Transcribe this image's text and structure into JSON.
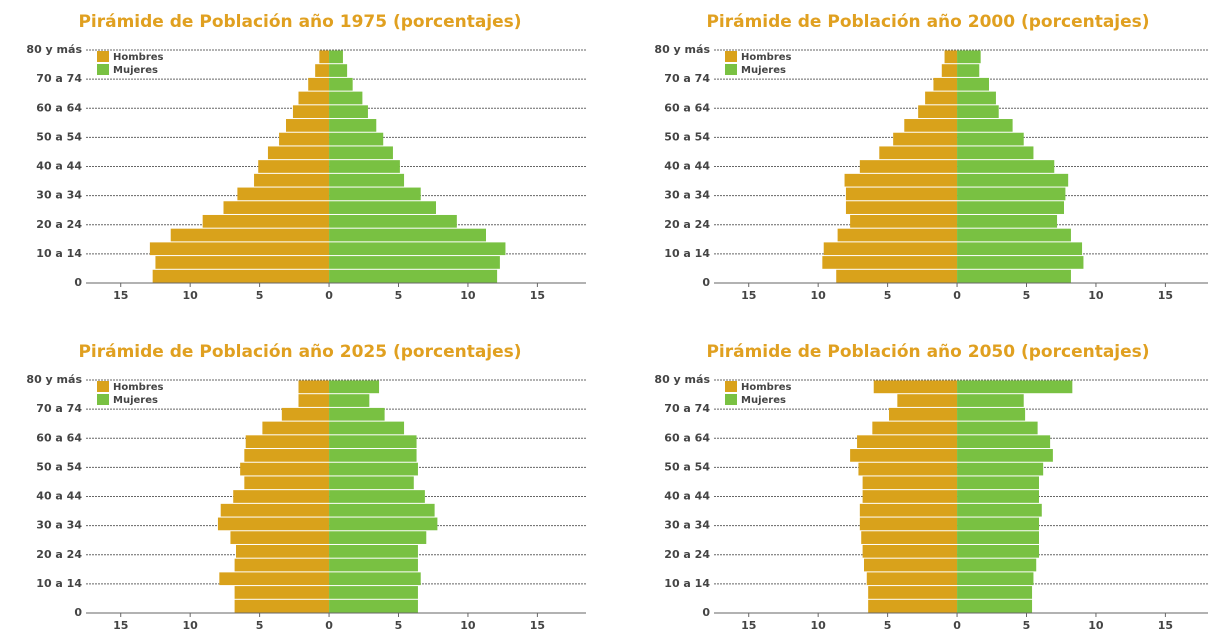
{
  "chart_data": [
    {
      "type": "bar",
      "title": "Pirámide de Población año 1975 (porcentajes)",
      "categories": [
        "0",
        null,
        "10 a 14",
        null,
        "20 a 24",
        null,
        "30 a 34",
        null,
        "40 a 44",
        null,
        "50 a 54",
        null,
        "60 a 64",
        null,
        "70 a 74",
        null,
        "80 y más"
      ],
      "series": [
        {
          "name": "Hombres",
          "color": "#d9a21b",
          "values": [
            12.7,
            12.5,
            12.9,
            11.4,
            9.1,
            7.6,
            6.6,
            5.4,
            5.1,
            4.4,
            3.6,
            3.1,
            2.6,
            2.2,
            1.5,
            1.0,
            0.7
          ]
        },
        {
          "name": "Mujeres",
          "color": "#79c142",
          "values": [
            12.1,
            12.3,
            12.7,
            11.3,
            9.2,
            7.7,
            6.6,
            5.4,
            5.1,
            4.6,
            3.9,
            3.4,
            2.8,
            2.4,
            1.7,
            1.3,
            1.0
          ]
        }
      ],
      "xlim": [
        -17.5,
        18.5
      ],
      "xticks": [
        {
          "value": -15,
          "label": "15"
        },
        {
          "value": -10,
          "label": "10"
        },
        {
          "value": -5,
          "label": "5"
        },
        0,
        5,
        10,
        15
      ]
    },
    {
      "type": "bar",
      "title": "Pirámide de Población año 2000 (porcentajes)",
      "categories": [
        "0",
        null,
        "10 a 14",
        null,
        "20 a 24",
        null,
        "30 a 34",
        null,
        "40 a 44",
        null,
        "50 a 54",
        null,
        "60 a 64",
        null,
        "70 a 74",
        null,
        "80 y más"
      ],
      "series": [
        {
          "name": "Hombres",
          "color": "#d9a21b",
          "values": [
            8.7,
            9.7,
            9.6,
            8.6,
            7.7,
            8.0,
            8.0,
            8.1,
            7.0,
            5.6,
            4.6,
            3.8,
            2.8,
            2.3,
            1.7,
            1.1,
            0.9
          ]
        },
        {
          "name": "Mujeres",
          "color": "#79c142",
          "values": [
            8.2,
            9.1,
            9.0,
            8.2,
            7.2,
            7.7,
            7.8,
            8.0,
            7.0,
            5.5,
            4.8,
            4.0,
            3.0,
            2.8,
            2.3,
            1.6,
            1.7
          ]
        }
      ],
      "xlim": [
        -17.5,
        18.5
      ],
      "xticks": [
        {
          "value": -15,
          "label": "15"
        },
        {
          "value": -10,
          "label": "10"
        },
        {
          "value": -5,
          "label": "5"
        },
        0,
        5,
        10,
        15
      ]
    },
    {
      "type": "bar",
      "title": "Pirámide de Población año 2025 (porcentajes)",
      "categories": [
        "0",
        null,
        "10 a 14",
        null,
        "20 a 24",
        null,
        "30 a 34",
        null,
        "40 a 44",
        null,
        "50 a 54",
        null,
        "60 a 64",
        null,
        "70 a 74",
        null,
        "80 y más"
      ],
      "series": [
        {
          "name": "Hombres",
          "color": "#d9a21b",
          "values": [
            6.8,
            6.8,
            7.9,
            6.8,
            6.7,
            7.1,
            8.0,
            7.8,
            6.9,
            6.1,
            6.4,
            6.1,
            6.0,
            4.8,
            3.4,
            2.2,
            2.2
          ]
        },
        {
          "name": "Mujeres",
          "color": "#79c142",
          "values": [
            6.4,
            6.4,
            6.6,
            6.4,
            6.4,
            7.0,
            7.8,
            7.6,
            6.9,
            6.1,
            6.4,
            6.3,
            6.3,
            5.4,
            4.0,
            2.9,
            3.6
          ]
        }
      ],
      "xlim": [
        -17.5,
        18.5
      ],
      "xticks": [
        {
          "value": -15,
          "label": "15"
        },
        {
          "value": -10,
          "label": "10"
        },
        {
          "value": -5,
          "label": "5"
        },
        0,
        5,
        10,
        15
      ]
    },
    {
      "type": "bar",
      "title": "Pirámide de Población año 2050 (porcentajes)",
      "categories": [
        "0",
        null,
        "10 a 14",
        null,
        "20 a 24",
        null,
        "30 a 34",
        null,
        "40 a 44",
        null,
        "50 a 54",
        null,
        "60 a 64",
        null,
        "70 a 74",
        null,
        "80 y más"
      ],
      "series": [
        {
          "name": "Hombres",
          "color": "#d9a21b",
          "values": [
            6.4,
            6.4,
            6.5,
            6.7,
            6.8,
            6.9,
            7.0,
            7.0,
            6.8,
            6.8,
            7.1,
            7.7,
            7.2,
            6.1,
            4.9,
            4.3,
            6.0
          ]
        },
        {
          "name": "Mujeres",
          "color": "#79c142",
          "values": [
            5.4,
            5.4,
            5.5,
            5.7,
            5.9,
            5.9,
            5.9,
            6.1,
            5.9,
            5.9,
            6.2,
            6.9,
            6.7,
            5.8,
            4.9,
            4.8,
            8.3
          ]
        }
      ],
      "xlim": [
        -17.5,
        18.5
      ],
      "xticks": [
        {
          "value": -15,
          "label": "15"
        },
        {
          "value": -10,
          "label": "10"
        },
        {
          "value": -5,
          "label": "5"
        },
        0,
        5,
        10,
        15
      ]
    }
  ]
}
